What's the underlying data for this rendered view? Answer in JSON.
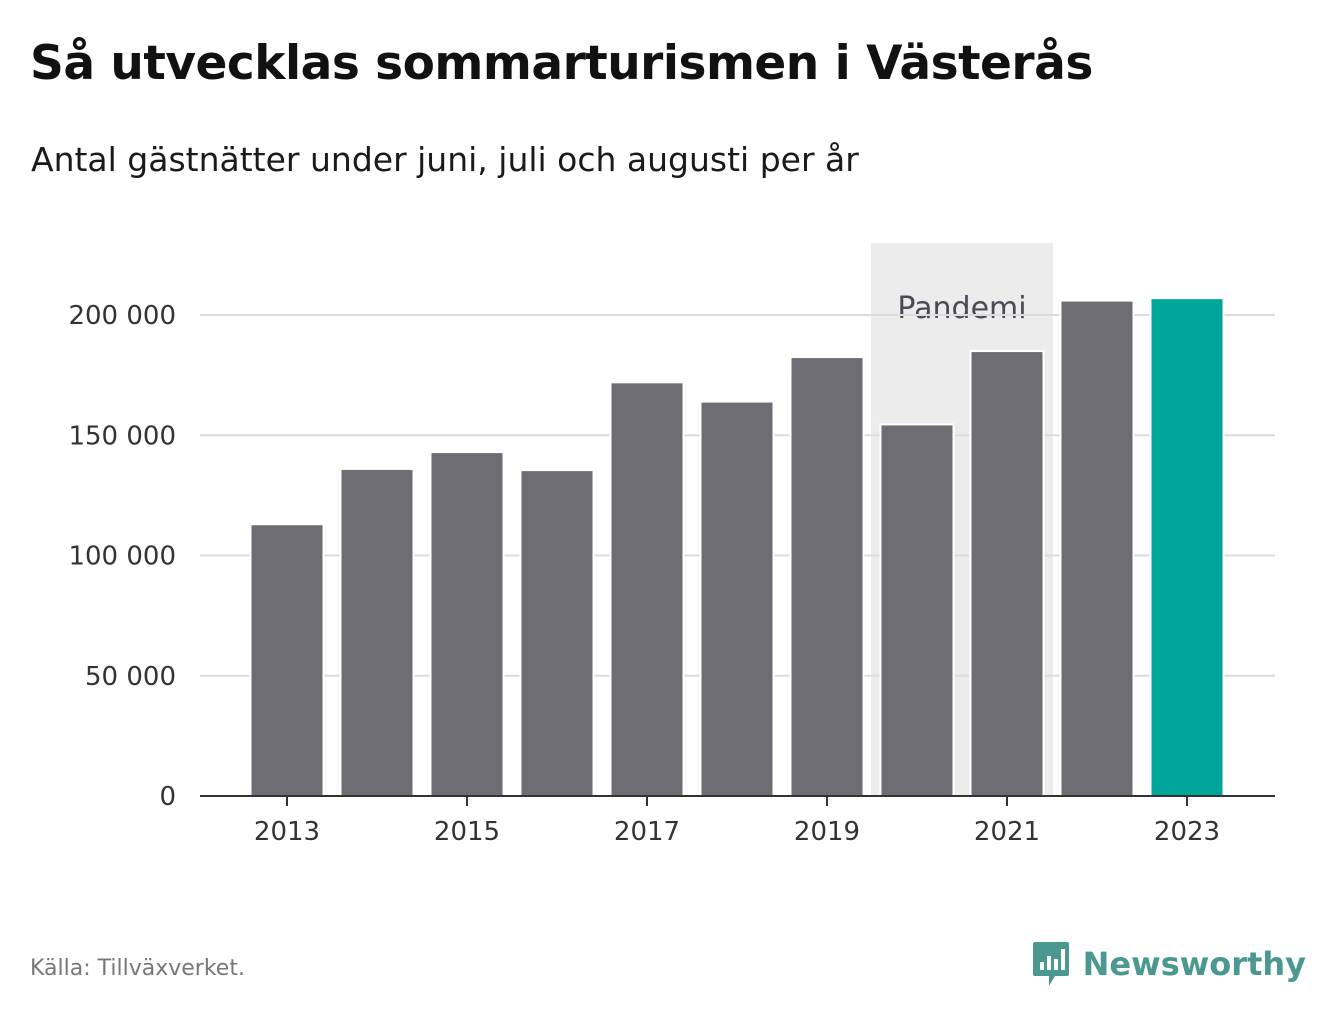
{
  "header": {
    "title": "Så utvecklas sommarturismen i Västerås",
    "subtitle": "Antal gästnätter under juni, juli och augusti per år"
  },
  "chart_data": {
    "type": "bar",
    "categories": [
      "2013",
      "2014",
      "2015",
      "2016",
      "2017",
      "2018",
      "2019",
      "2020",
      "2021",
      "2022",
      "2023"
    ],
    "values": [
      113000,
      136000,
      143000,
      135500,
      172000,
      164000,
      182500,
      154500,
      185000,
      206000,
      207000
    ],
    "ylim": [
      0,
      230000
    ],
    "yticks": [
      0,
      50000,
      100000,
      150000,
      200000
    ],
    "ytick_labels": [
      "0",
      "50 000",
      "100 000",
      "150 000",
      "200 000"
    ],
    "xtick_labels": [
      "2013",
      "2015",
      "2017",
      "2019",
      "2021",
      "2023"
    ],
    "grid": true,
    "bar_color": "#6e6d73",
    "highlight_color": "#00a59a",
    "highlight_category": "2023",
    "annotation": {
      "label": "Pandemi",
      "range": [
        "2020",
        "2021"
      ],
      "color": "#ececec"
    }
  },
  "footer": {
    "source": "Källa: Tillväxverket.",
    "brand": "Newsworthy",
    "brand_color": "#4a9890",
    "logo_icon": "newsworthy-logo-icon"
  }
}
